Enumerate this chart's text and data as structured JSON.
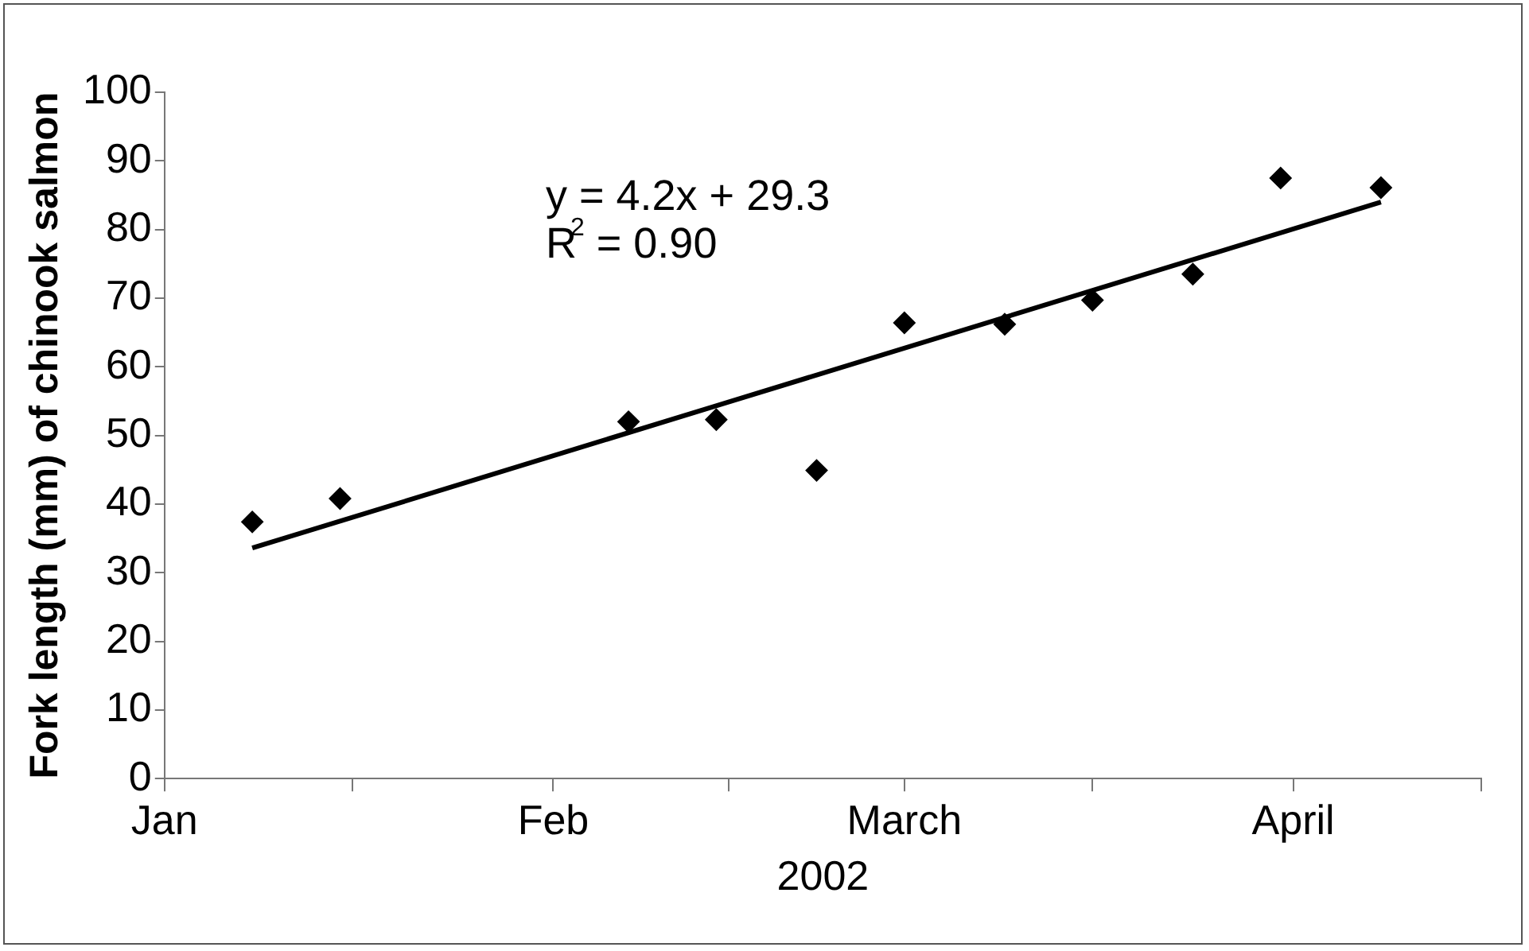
{
  "chart_data": {
    "type": "scatter",
    "xlabel": "2002",
    "ylabel": "Fork length (mm) of chinook salmon",
    "x": [
      "2002-01-08",
      "2002-01-15",
      "2002-02-07",
      "2002-02-14",
      "2002-02-22",
      "2002-03-01",
      "2002-03-09",
      "2002-03-16",
      "2002-03-24",
      "2002-03-31",
      "2002-04-08"
    ],
    "series": [
      {
        "color": "#000000",
        "marker": "diamond",
        "values": [
          37.4,
          40.8,
          52.0,
          52.3,
          44.9,
          66.4,
          66.2,
          69.7,
          73.5,
          87.5,
          86.1
        ]
      },
      {
        "type": "line",
        "color": "#000000",
        "marker": "none",
        "x": [
          "2002-01-08",
          "2002-04-08"
        ],
        "values": [
          33.6,
          84.0
        ]
      }
    ],
    "xlim": [
      "2002-01-01",
      "2002-04-16"
    ],
    "xticks": [
      {
        "value": "2002-01-01",
        "label": "Jan"
      },
      {
        "value": "2002-01-16",
        "label": null
      },
      {
        "value": "2002-02-01",
        "label": "Feb"
      },
      {
        "value": "2002-02-15",
        "label": null
      },
      {
        "value": "2002-03-01",
        "label": "March"
      },
      {
        "value": "2002-03-16",
        "label": null
      },
      {
        "value": "2002-04-01",
        "label": "April"
      },
      {
        "value": "2002-04-16",
        "label": null
      }
    ],
    "ylim": [
      0,
      100
    ],
    "yticks": [
      0,
      10,
      20,
      30,
      40,
      50,
      60,
      70,
      80,
      90,
      100
    ],
    "annotations": [
      "y = 4.2x + 29.3",
      "R$^{2}$ = 0.90"
    ],
    "grid": false,
    "legend": false
  }
}
